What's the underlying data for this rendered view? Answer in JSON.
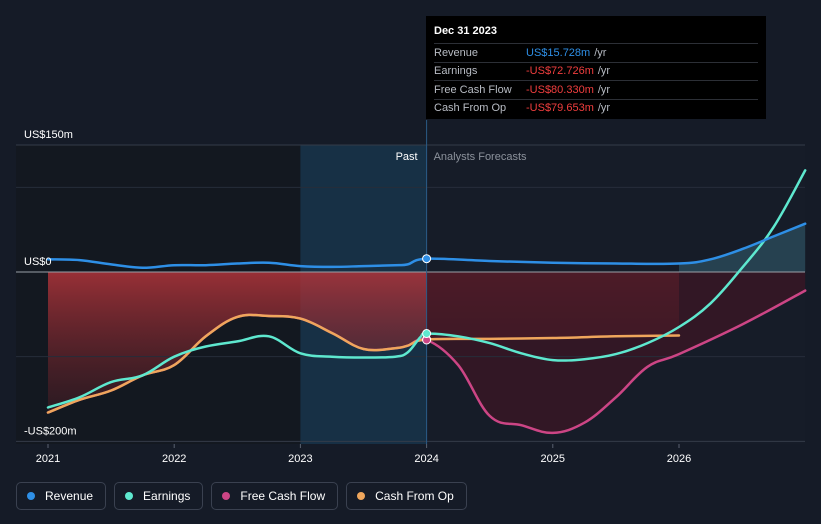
{
  "colors": {
    "revenue": "#2e8fe6",
    "earnings": "#5ee8cf",
    "free_cash_flow": "#cc4585",
    "cash_from_op": "#efa65c",
    "negative_value": "#f03e3e",
    "revenue_value": "#2e8fe6",
    "past_highlight": "#1a3852"
  },
  "tooltip": {
    "date": "Dec 31 2023",
    "rows": [
      {
        "label": "Revenue",
        "value": "US$15.728m",
        "unit": "/yr",
        "color_key": "revenue_value"
      },
      {
        "label": "Earnings",
        "value": "-US$72.726m",
        "unit": "/yr",
        "color_key": "negative_value"
      },
      {
        "label": "Free Cash Flow",
        "value": "-US$80.330m",
        "unit": "/yr",
        "color_key": "negative_value"
      },
      {
        "label": "Cash From Op",
        "value": "-US$79.653m",
        "unit": "/yr",
        "color_key": "negative_value"
      }
    ]
  },
  "regions": {
    "past_label": "Past",
    "forecast_label": "Analysts Forecasts"
  },
  "legend": [
    {
      "label": "Revenue",
      "color_key": "revenue"
    },
    {
      "label": "Earnings",
      "color_key": "earnings"
    },
    {
      "label": "Free Cash Flow",
      "color_key": "free_cash_flow"
    },
    {
      "label": "Cash From Op",
      "color_key": "cash_from_op"
    }
  ],
  "chart_data": {
    "type": "line",
    "title": "",
    "xlabel": "",
    "ylabel": "",
    "unit": "US$m",
    "xlim": [
      2021.0,
      2027.0
    ],
    "ylim": [
      -200,
      150
    ],
    "y_ticks": [
      {
        "value": 150,
        "label": "US$150m"
      },
      {
        "value": 0,
        "label": "US$0"
      },
      {
        "value": -200,
        "label": "-US$200m"
      }
    ],
    "x_ticks": [
      {
        "value": 2021,
        "label": "2021"
      },
      {
        "value": 2022,
        "label": "2022"
      },
      {
        "value": 2023,
        "label": "2023"
      },
      {
        "value": 2024,
        "label": "2024"
      },
      {
        "value": 2025,
        "label": "2025"
      },
      {
        "value": 2026,
        "label": "2026"
      }
    ],
    "past_end": 2024.0,
    "highlight_start": 2023.0,
    "series": [
      {
        "name": "Revenue",
        "key": "revenue",
        "past_end": 2024.0,
        "points": [
          [
            2021.0,
            15
          ],
          [
            2021.25,
            14
          ],
          [
            2021.5,
            9
          ],
          [
            2021.75,
            5
          ],
          [
            2022.0,
            8
          ],
          [
            2022.25,
            8
          ],
          [
            2022.5,
            10
          ],
          [
            2022.75,
            11
          ],
          [
            2023.0,
            7
          ],
          [
            2023.25,
            6
          ],
          [
            2023.5,
            7
          ],
          [
            2023.75,
            8
          ],
          [
            2023.85,
            9
          ],
          [
            2024.0,
            15.7
          ],
          [
            2024.5,
            13
          ],
          [
            2025.0,
            11
          ],
          [
            2025.5,
            10
          ],
          [
            2026.0,
            10
          ],
          [
            2026.25,
            15
          ],
          [
            2026.5,
            27
          ],
          [
            2026.75,
            42
          ],
          [
            2027.0,
            57
          ]
        ]
      },
      {
        "name": "Earnings",
        "key": "earnings",
        "past_end": 2024.0,
        "points": [
          [
            2021.0,
            -160
          ],
          [
            2021.25,
            -148
          ],
          [
            2021.5,
            -130
          ],
          [
            2021.75,
            -122
          ],
          [
            2022.0,
            -100
          ],
          [
            2022.25,
            -88
          ],
          [
            2022.5,
            -82
          ],
          [
            2022.75,
            -76
          ],
          [
            2023.0,
            -96
          ],
          [
            2023.25,
            -100
          ],
          [
            2023.5,
            -101
          ],
          [
            2023.75,
            -100
          ],
          [
            2023.85,
            -95
          ],
          [
            2023.95,
            -77
          ],
          [
            2024.0,
            -72.7
          ],
          [
            2024.25,
            -76
          ],
          [
            2024.5,
            -84
          ],
          [
            2024.75,
            -96
          ],
          [
            2025.0,
            -104
          ],
          [
            2025.25,
            -103
          ],
          [
            2025.5,
            -97
          ],
          [
            2025.75,
            -84
          ],
          [
            2026.0,
            -65
          ],
          [
            2026.25,
            -37
          ],
          [
            2026.5,
            5
          ],
          [
            2026.75,
            53
          ],
          [
            2027.0,
            120
          ]
        ]
      },
      {
        "name": "Free Cash Flow",
        "key": "free_cash_flow",
        "past_end": 2024.0,
        "points": [
          [
            2021.0,
            -166
          ],
          [
            2021.25,
            -151
          ],
          [
            2021.5,
            -140
          ],
          [
            2021.75,
            -122
          ],
          [
            2022.0,
            -110
          ],
          [
            2022.25,
            -76
          ],
          [
            2022.5,
            -53
          ],
          [
            2022.75,
            -52
          ],
          [
            2023.0,
            -55
          ],
          [
            2023.25,
            -72
          ],
          [
            2023.5,
            -91
          ],
          [
            2023.75,
            -90
          ],
          [
            2023.85,
            -87
          ],
          [
            2024.0,
            -80.3
          ],
          [
            2024.25,
            -110
          ],
          [
            2024.5,
            -170
          ],
          [
            2024.75,
            -181
          ],
          [
            2025.0,
            -190
          ],
          [
            2025.25,
            -178
          ],
          [
            2025.5,
            -148
          ],
          [
            2025.75,
            -112
          ],
          [
            2026.0,
            -97
          ],
          [
            2026.5,
            -62
          ],
          [
            2027.0,
            -22
          ]
        ]
      },
      {
        "name": "Cash From Op",
        "key": "cash_from_op",
        "past_end": 2024.0,
        "points": [
          [
            2021.0,
            -166
          ],
          [
            2021.25,
            -151
          ],
          [
            2021.5,
            -140
          ],
          [
            2021.75,
            -122
          ],
          [
            2022.0,
            -110
          ],
          [
            2022.25,
            -76
          ],
          [
            2022.5,
            -53
          ],
          [
            2022.75,
            -52
          ],
          [
            2023.0,
            -55
          ],
          [
            2023.25,
            -72
          ],
          [
            2023.5,
            -91
          ],
          [
            2023.75,
            -90
          ],
          [
            2023.85,
            -87
          ],
          [
            2024.0,
            -79.7
          ],
          [
            2024.5,
            -79
          ],
          [
            2025.0,
            -78
          ],
          [
            2025.5,
            -76
          ],
          [
            2026.0,
            -75
          ]
        ]
      }
    ]
  }
}
